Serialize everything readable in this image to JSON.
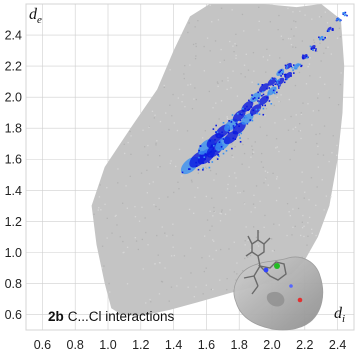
{
  "chart_data": {
    "type": "scatter",
    "title": "",
    "panel": {
      "id": "2b",
      "text": "C...Cl interactions"
    },
    "xlabel": {
      "symbol": "d",
      "subscript": "i"
    },
    "ylabel": {
      "symbol": "d",
      "subscript": "e"
    },
    "xlim": [
      0.5,
      2.5
    ],
    "ylim": [
      0.5,
      2.6
    ],
    "x_ticks": [
      "0.6",
      "0.8",
      "1.0",
      "1.2",
      "1.4",
      "1.6",
      "1.8",
      "2.0",
      "2.2",
      "2.4"
    ],
    "y_ticks": [
      "0.6",
      "0.8",
      "1.0",
      "1.2",
      "1.4",
      "1.6",
      "1.8",
      "2.0",
      "2.2",
      "2.4"
    ],
    "grid": true,
    "colors": {
      "background": "#c4c4c4",
      "highlight_dark": "#0a18e0",
      "highlight_light": "#3a90f2",
      "grid": "#cfcfcf"
    },
    "series": [
      {
        "role": "full fingerprint (grey)",
        "outline": [
          [
            1.02,
            0.64
          ],
          [
            0.98,
            0.8
          ],
          [
            0.93,
            1.05
          ],
          [
            0.9,
            1.3
          ],
          [
            0.98,
            1.55
          ],
          [
            1.15,
            1.82
          ],
          [
            1.3,
            2.05
          ],
          [
            1.4,
            2.3
          ],
          [
            1.5,
            2.52
          ],
          [
            1.62,
            2.6
          ],
          [
            1.95,
            2.6
          ],
          [
            2.15,
            2.58
          ],
          [
            2.3,
            2.6
          ],
          [
            2.42,
            2.5
          ],
          [
            2.44,
            2.2
          ],
          [
            2.43,
            1.9
          ],
          [
            2.4,
            1.6
          ],
          [
            2.35,
            1.3
          ],
          [
            2.28,
            1.1
          ],
          [
            2.2,
            0.95
          ],
          [
            2.12,
            0.86
          ],
          [
            1.9,
            0.78
          ],
          [
            1.75,
            0.74
          ],
          [
            1.55,
            0.68
          ],
          [
            1.38,
            0.63
          ],
          [
            1.2,
            0.59
          ],
          [
            1.08,
            0.6
          ]
        ]
      },
      {
        "role": "C...Cl contacts (blue)",
        "points": [
          [
            1.5,
            1.56
          ],
          [
            1.55,
            1.6
          ],
          [
            1.6,
            1.62
          ],
          [
            1.6,
            1.68
          ],
          [
            1.65,
            1.66
          ],
          [
            1.65,
            1.72
          ],
          [
            1.7,
            1.7
          ],
          [
            1.7,
            1.78
          ],
          [
            1.75,
            1.74
          ],
          [
            1.75,
            1.82
          ],
          [
            1.8,
            1.8
          ],
          [
            1.8,
            1.88
          ],
          [
            1.85,
            1.86
          ],
          [
            1.85,
            1.94
          ],
          [
            1.9,
            1.92
          ],
          [
            1.9,
            2.0
          ],
          [
            1.95,
            1.98
          ],
          [
            1.95,
            2.06
          ],
          [
            2.0,
            2.04
          ],
          [
            2.0,
            2.1
          ],
          [
            2.05,
            2.1
          ],
          [
            2.05,
            2.16
          ],
          [
            2.1,
            2.14
          ],
          [
            2.1,
            2.2
          ],
          [
            2.15,
            2.2
          ],
          [
            2.2,
            2.26
          ],
          [
            2.25,
            2.32
          ],
          [
            2.3,
            2.38
          ],
          [
            2.35,
            2.44
          ],
          [
            2.4,
            2.5
          ],
          [
            2.44,
            2.54
          ]
        ]
      }
    ],
    "inset": "molecule with Hirshfeld surface (lower right)"
  }
}
